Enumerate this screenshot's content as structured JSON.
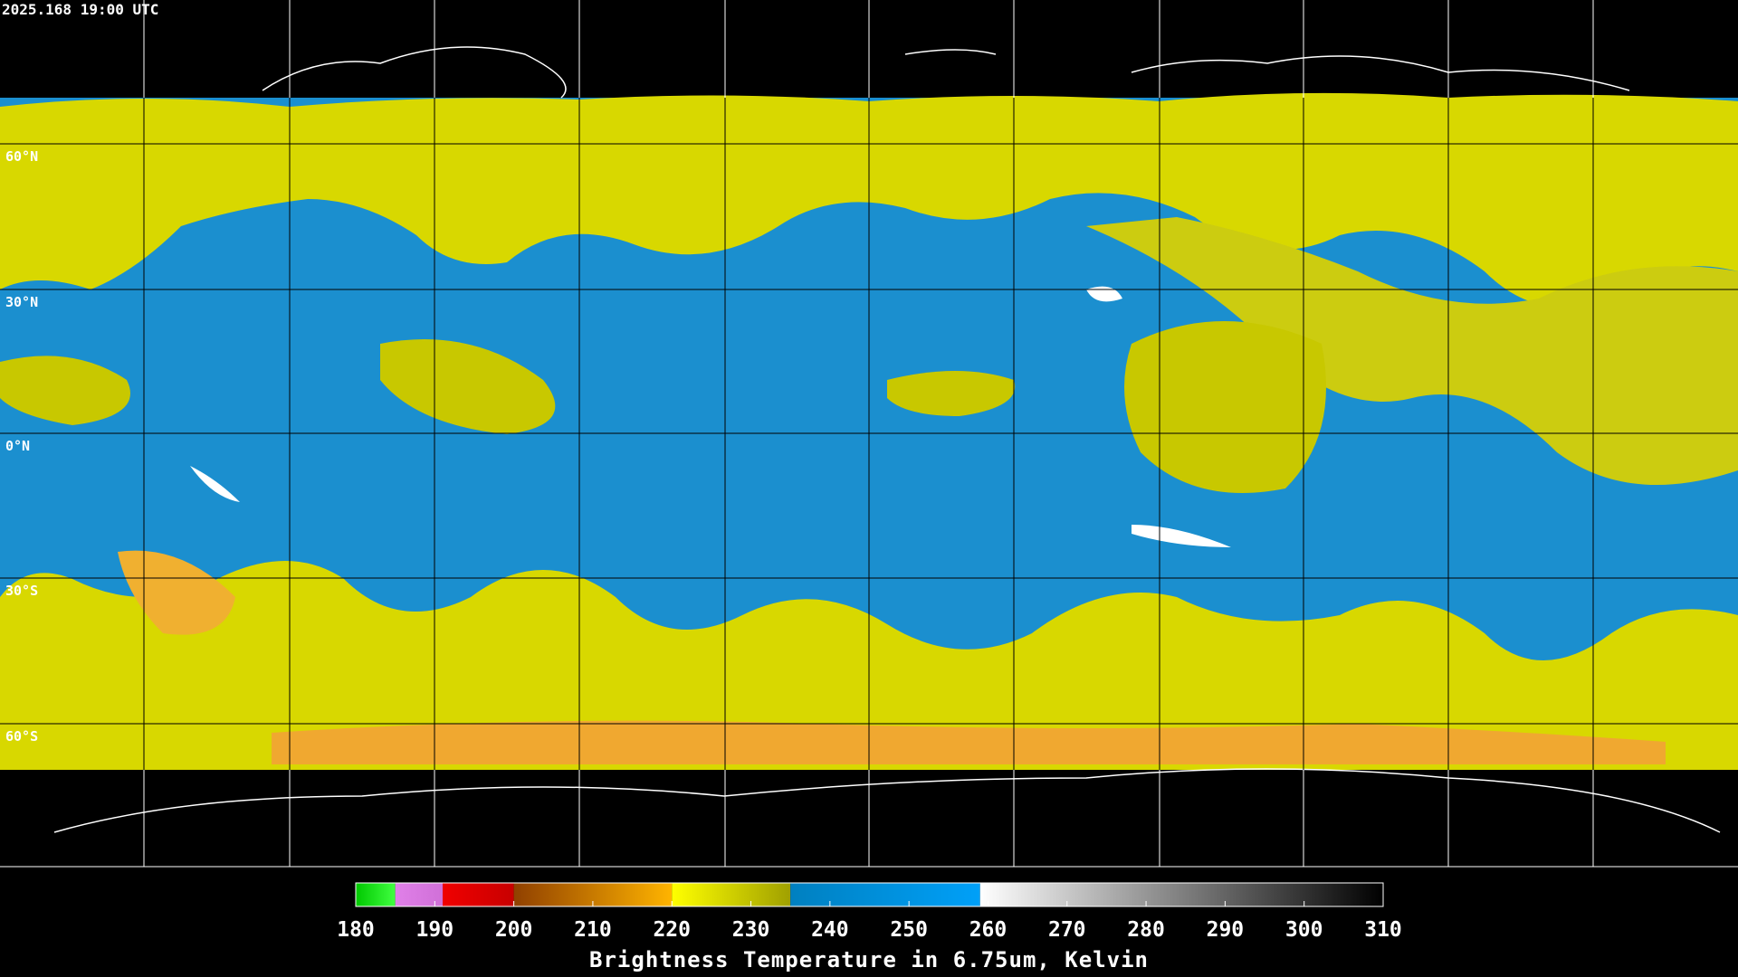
{
  "timestamp": "2025.168 19:00 UTC",
  "latitude_labels": [
    "60°N",
    "30°N",
    "0°N",
    "30°S",
    "60°S"
  ],
  "colorbar": {
    "label": "Brightness Temperature in 6.75um, Kelvin",
    "lim": [
      180,
      310
    ],
    "ticks": [
      180,
      190,
      200,
      210,
      220,
      230,
      240,
      250,
      260,
      270,
      280,
      290,
      300,
      310
    ],
    "segments": [
      {
        "from": 180,
        "to": 185,
        "colors": [
          "#00c800",
          "#40ff40"
        ]
      },
      {
        "from": 185,
        "to": 191,
        "colors": [
          "#e080e8",
          "#d070d8"
        ]
      },
      {
        "from": 191,
        "to": 200,
        "colors": [
          "#f00000",
          "#c80000"
        ]
      },
      {
        "from": 200,
        "to": 220,
        "colors": [
          "#904000",
          "#ffb400"
        ]
      },
      {
        "from": 220,
        "to": 235,
        "colors": [
          "#ffff00",
          "#a0a000"
        ]
      },
      {
        "from": 235,
        "to": 259,
        "colors": [
          "#0080c0",
          "#00a0f8"
        ]
      },
      {
        "from": 259,
        "to": 310,
        "colors": [
          "#ffffff",
          "#000000"
        ]
      }
    ]
  }
}
